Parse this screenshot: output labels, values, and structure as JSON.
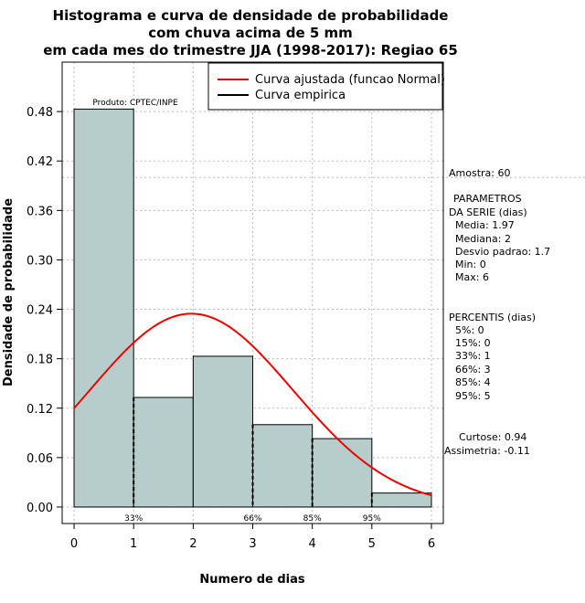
{
  "chart_data": {
    "type": "bar",
    "title_lines": [
      "Histograma e curva de densidade de probabilidade",
      "com chuva acima de 5 mm",
      "em cada mes do trimestre JJA (1998-2017): Regiao 65"
    ],
    "xlabel": "Numero de dias",
    "ylabel": "Densidade de probabilidade",
    "xlim": [
      -0.2,
      6.2
    ],
    "ylim": [
      -0.02,
      0.54
    ],
    "xticks": [
      "0",
      "1",
      "2",
      "3",
      "4",
      "5",
      "6"
    ],
    "yticks": [
      "0.00",
      "0.06",
      "0.12",
      "0.18",
      "0.24",
      "0.30",
      "0.36",
      "0.42",
      "0.48"
    ],
    "bins": [
      {
        "from": 0,
        "to": 1,
        "value": 0.483
      },
      {
        "from": 1,
        "to": 2,
        "value": 0.133
      },
      {
        "from": 2,
        "to": 3,
        "value": 0.183
      },
      {
        "from": 3,
        "to": 4,
        "value": 0.1
      },
      {
        "from": 4,
        "to": 5,
        "value": 0.083
      },
      {
        "from": 5,
        "to": 6,
        "value": 0.017
      }
    ],
    "normal_fit": {
      "mean": 1.97,
      "sd": 1.7,
      "x_from": 0,
      "x_to": 6
    },
    "legend": [
      {
        "label": "Curva ajustada (funcao Normal)",
        "color": "#ee0000"
      },
      {
        "label": "Curva empirica",
        "color": "#000000"
      }
    ],
    "percentile_markers": [
      {
        "label": "33%",
        "x": 1
      },
      {
        "label": "66%",
        "x": 3
      },
      {
        "label": "85%",
        "x": 4
      },
      {
        "label": "95%",
        "x": 5
      }
    ],
    "reference_line_y": 0.4,
    "product_label": "Produto: CPTEC/INPE",
    "colors": {
      "bar_fill": "#b7cdcc",
      "fit_curve": "#ee0000",
      "grid": "#bbbbbb"
    }
  },
  "side_panel": {
    "amostra": "Amostra: 60",
    "params_title_1": "PARAMETROS",
    "params_title_2": "DA SERIE (dias)",
    "params": [
      "Media: 1.97",
      "Mediana: 2",
      "Desvio padrao: 1.7",
      "Min: 0",
      "Max: 6"
    ],
    "percentis_title": "PERCENTIS (dias)",
    "percentis": [
      "5%: 0",
      "15%: 0",
      "33%: 1",
      "66%: 3",
      "85%: 4",
      "95%: 5"
    ],
    "curtose": "Curtose: 0.94",
    "assimetria": "Assimetria: -0.11"
  }
}
